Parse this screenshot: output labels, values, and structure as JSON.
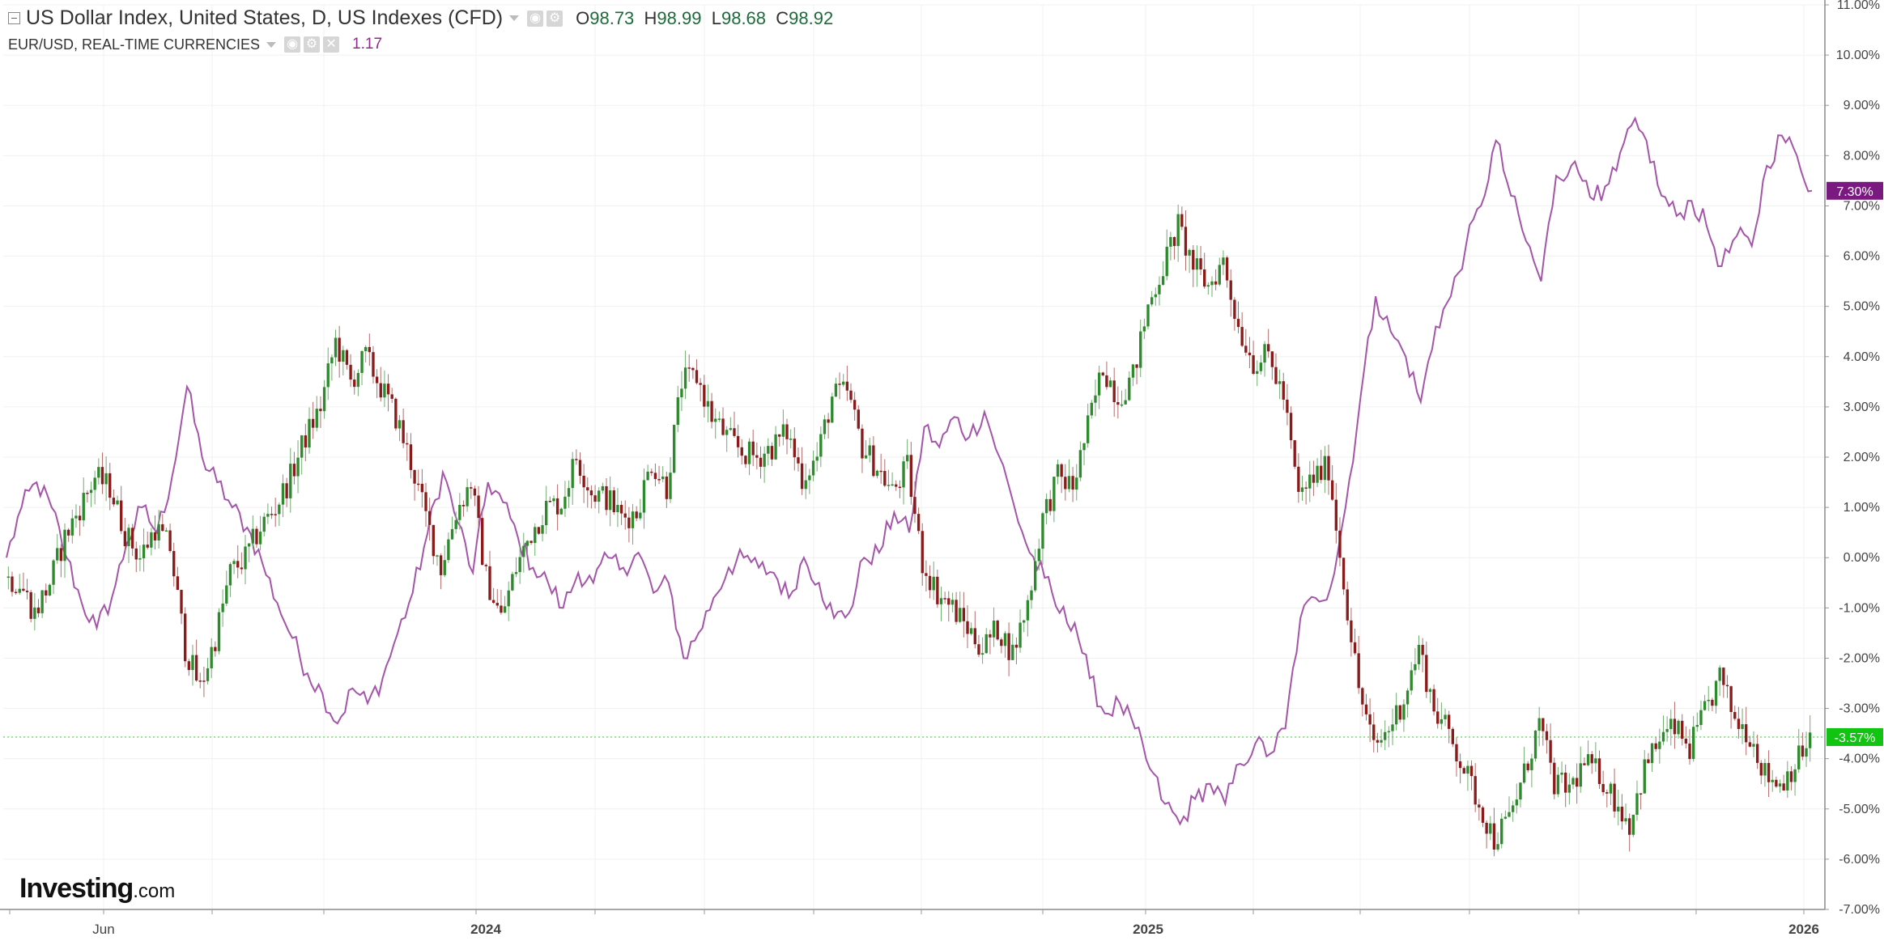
{
  "header": {
    "title": "US Dollar Index, United States, D, US Indexes (CFD)",
    "ohlc": {
      "o_label": "O",
      "o": "98.73",
      "h_label": "H",
      "h": "98.99",
      "l_label": "L",
      "l": "98.68",
      "c_label": "C",
      "c": "98.92"
    },
    "compare_symbol": "EUR/USD, REAL-TIME CURRENCIES",
    "compare_value": "1.17"
  },
  "logo": {
    "brand": "Investing",
    "suffix": ".com"
  },
  "colors": {
    "up": "#2d8a2d",
    "down": "#8b1a1a",
    "eur_line": "#a455a9",
    "dxy_badge": "#11c411",
    "eur_badge": "#7a1a80",
    "grid": "#f0f0f0"
  },
  "chart_data": {
    "type": "line",
    "y_axis": {
      "unit": "%",
      "ticks": [
        "11.00%",
        "10.00%",
        "9.00%",
        "8.00%",
        "7.00%",
        "6.00%",
        "5.00%",
        "4.00%",
        "3.00%",
        "2.00%",
        "1.00%",
        "0.00%",
        "-1.00%",
        "-2.00%",
        "-3.00%",
        "-4.00%",
        "-5.00%",
        "-6.00%",
        "-7.00%"
      ],
      "range": [
        -7,
        11
      ]
    },
    "x_axis": {
      "labels": [
        "Jun",
        "2024",
        "2025",
        "2026"
      ]
    },
    "current_values": {
      "us_dollar_index": "-3.57%",
      "eur_usd": "7.30%"
    },
    "series": [
      {
        "name": "US Dollar Index",
        "style": "candlestick",
        "values": [
          -0.4,
          -0.5,
          -1.1,
          -0.5,
          0.4,
          1.0,
          1.6,
          1.4,
          0.5,
          0.0,
          0.6,
          0.2,
          -1.8,
          -2.6,
          -1.6,
          -0.3,
          0.0,
          0.6,
          1.0,
          1.6,
          2.4,
          3.0,
          4.3,
          3.5,
          4.0,
          3.4,
          2.8,
          1.9,
          0.8,
          -0.2,
          0.9,
          1.5,
          -0.4,
          -1.2,
          -0.2,
          0.5,
          1.0,
          1.1,
          2.0,
          1.3,
          1.2,
          0.8,
          0.9,
          1.9,
          1.4,
          3.5,
          3.6,
          2.8,
          2.4,
          2.1,
          2.0,
          2.2,
          2.5,
          1.6,
          2.0,
          3.2,
          3.3,
          2.2,
          1.8,
          1.3,
          1.8,
          -0.1,
          -0.7,
          -1.0,
          -1.4,
          -1.8,
          -1.4,
          -1.9,
          -0.9,
          0.8,
          1.6,
          1.4,
          2.6,
          3.8,
          3.2,
          3.6,
          5.0,
          5.8,
          6.6,
          5.8,
          5.4,
          5.9,
          4.6,
          3.9,
          4.0,
          3.2,
          1.2,
          1.6,
          1.8,
          -0.5,
          -2.6,
          -3.8,
          -3.4,
          -2.8,
          -1.8,
          -3.0,
          -3.5,
          -4.2,
          -4.9,
          -5.6,
          -5.2,
          -4.3,
          -3.3,
          -4.5,
          -4.6,
          -4.1,
          -4.3,
          -4.8,
          -5.3,
          -4.2,
          -3.6,
          -3.4,
          -3.8,
          -3.1,
          -2.4,
          -3.2,
          -3.5,
          -4.3,
          -4.5,
          -4.1,
          -3.6
        ]
      },
      {
        "name": "EUR/USD",
        "style": "line",
        "values": [
          0.0,
          1.0,
          1.5,
          1.0,
          0.0,
          -0.9,
          -1.4,
          -0.8,
          0.3,
          1.0,
          0.5,
          1.6,
          3.4,
          2.0,
          1.5,
          1.0,
          0.6,
          -0.1,
          -0.9,
          -1.6,
          -2.3,
          -2.7,
          -3.3,
          -2.6,
          -2.9,
          -2.4,
          -1.5,
          -0.7,
          0.5,
          1.7,
          0.7,
          -0.3,
          1.5,
          1.1,
          0.4,
          -0.2,
          -0.5,
          -1.0,
          -0.3,
          -0.5,
          0.0,
          -0.2,
          0.1,
          -0.7,
          -0.5,
          -2.0,
          -1.5,
          -0.8,
          -0.2,
          0.0,
          -0.2,
          -0.3,
          -0.8,
          0.0,
          -0.5,
          -1.2,
          -1.1,
          0.0,
          0.1,
          0.9,
          0.5,
          2.6,
          2.2,
          2.8,
          2.4,
          2.9,
          2.0,
          1.0,
          0.1,
          -0.4,
          -1.1,
          -1.3,
          -2.4,
          -3.1,
          -2.9,
          -3.4,
          -4.2,
          -4.9,
          -5.3,
          -4.8,
          -4.5,
          -4.9,
          -4.1,
          -3.7,
          -3.9,
          -3.4,
          -1.2,
          -0.8,
          -0.6,
          1.0,
          3.2,
          5.2,
          4.5,
          4.0,
          3.1,
          4.6,
          5.2,
          6.2,
          7.0,
          8.3,
          7.2,
          6.3,
          5.5,
          7.6,
          7.8,
          7.5,
          7.1,
          7.7,
          8.6,
          8.3,
          7.2,
          6.8,
          7.1,
          6.6,
          5.8,
          6.4,
          6.2,
          7.8,
          8.4,
          8.0,
          7.3
        ]
      }
    ]
  }
}
